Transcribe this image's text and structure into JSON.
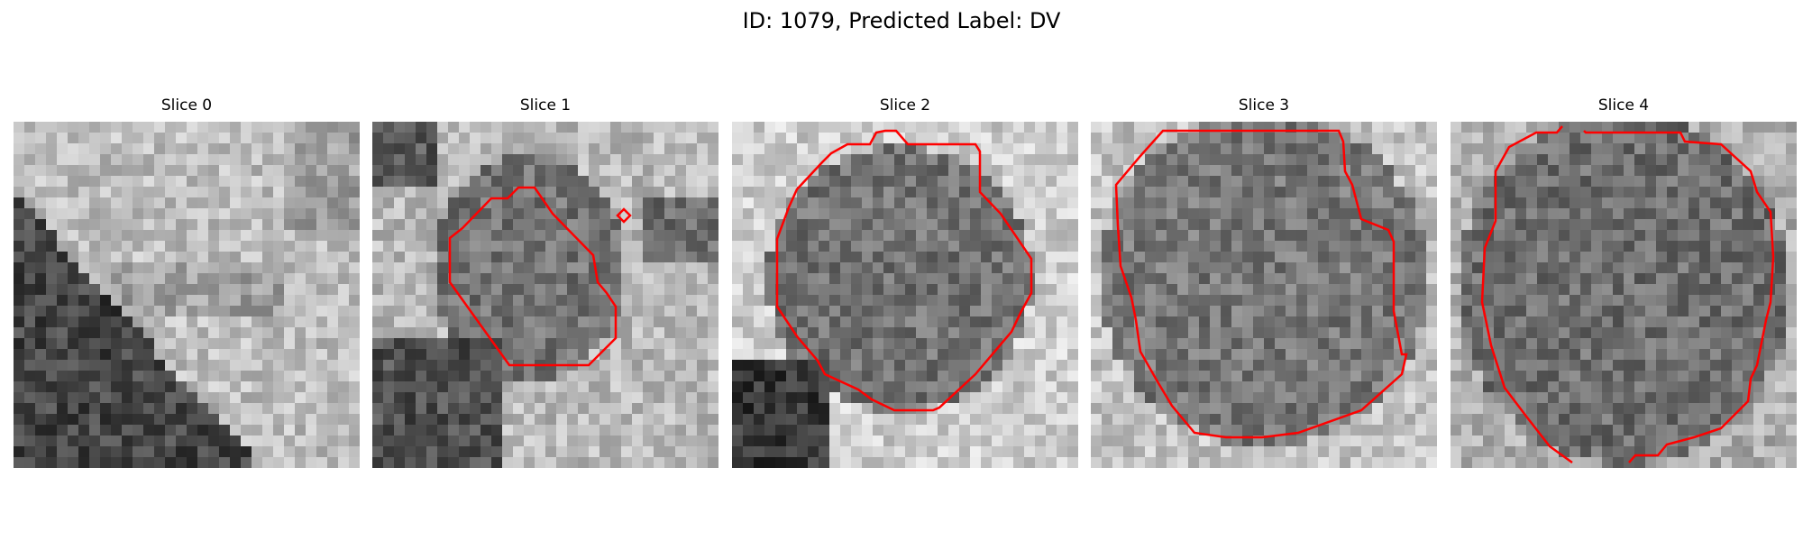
{
  "figure": {
    "title": "ID: 1079, Predicted Label: DV"
  },
  "colors": {
    "contour": "#ff0000",
    "background": "#ffffff"
  },
  "panels": [
    {
      "title": "Slice 0"
    },
    {
      "title": "Slice 1"
    },
    {
      "title": "Slice 2"
    },
    {
      "title": "Slice 3"
    },
    {
      "title": "Slice 4"
    }
  ]
}
